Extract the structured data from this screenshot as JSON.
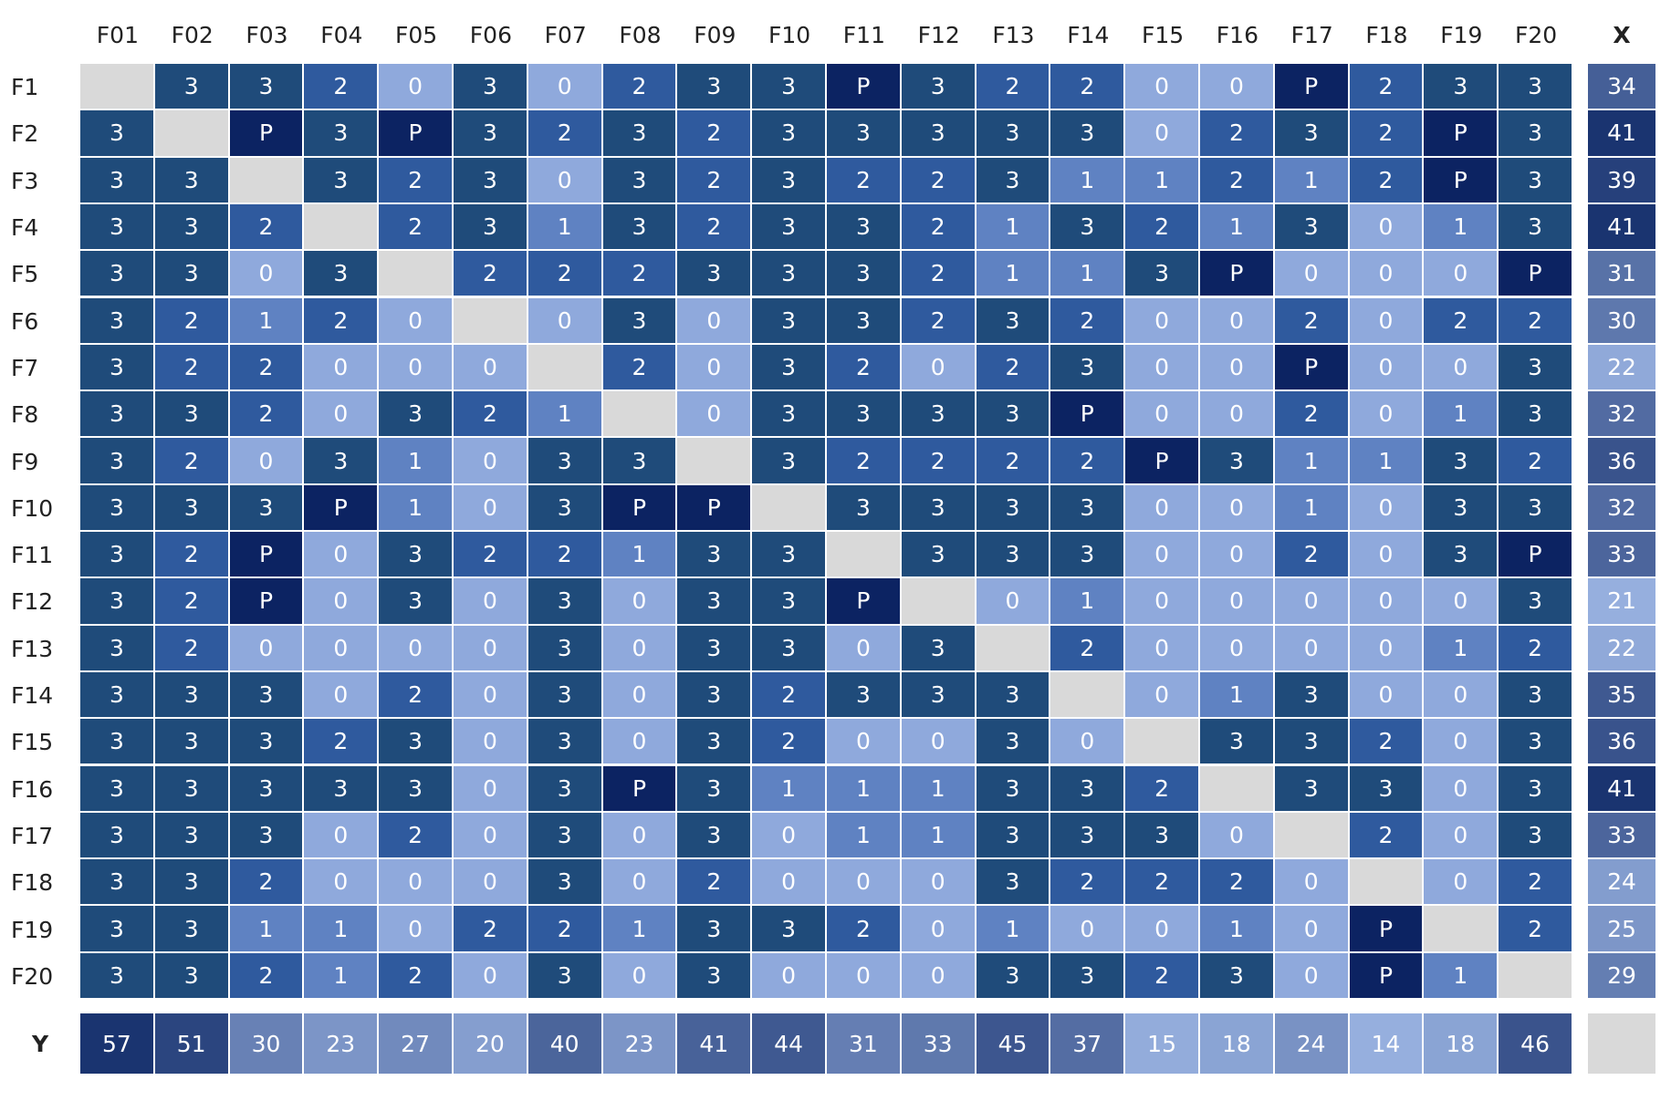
{
  "table": {
    "columns": [
      "F01",
      "F02",
      "F03",
      "F04",
      "F05",
      "F06",
      "F07",
      "F08",
      "F09",
      "F10",
      "F11",
      "F12",
      "F13",
      "F14",
      "F15",
      "F16",
      "F17",
      "F18",
      "F19",
      "F20",
      "X"
    ],
    "rows": [
      {
        "label": "F1",
        "cells": [
          null,
          3,
          3,
          2,
          0,
          3,
          0,
          2,
          3,
          3,
          "P",
          3,
          2,
          2,
          0,
          0,
          "P",
          2,
          3,
          3
        ],
        "total": 34
      },
      {
        "label": "F2",
        "cells": [
          3,
          null,
          "P",
          3,
          "P",
          3,
          2,
          3,
          2,
          3,
          3,
          3,
          3,
          3,
          0,
          2,
          3,
          2,
          "P",
          3
        ],
        "total": 41
      },
      {
        "label": "F3",
        "cells": [
          3,
          3,
          null,
          3,
          2,
          3,
          0,
          3,
          2,
          3,
          2,
          2,
          3,
          1,
          1,
          2,
          1,
          2,
          "P",
          3
        ],
        "total": 39
      },
      {
        "label": "F4",
        "cells": [
          3,
          3,
          2,
          null,
          2,
          3,
          1,
          3,
          2,
          3,
          3,
          2,
          1,
          3,
          2,
          1,
          3,
          0,
          1,
          3
        ],
        "total": 41
      },
      {
        "label": "F5",
        "cells": [
          3,
          3,
          0,
          3,
          null,
          2,
          2,
          2,
          3,
          3,
          3,
          2,
          1,
          1,
          3,
          "P",
          0,
          0,
          0,
          "P"
        ],
        "total": 31
      },
      {
        "label": "F6",
        "cells": [
          3,
          2,
          1,
          2,
          0,
          null,
          0,
          3,
          0,
          3,
          3,
          2,
          3,
          2,
          0,
          0,
          2,
          0,
          2,
          2
        ],
        "total": 30
      },
      {
        "label": "F7",
        "cells": [
          3,
          2,
          2,
          0,
          0,
          0,
          null,
          2,
          0,
          3,
          2,
          0,
          2,
          3,
          0,
          0,
          "P",
          0,
          0,
          3
        ],
        "total": 22
      },
      {
        "label": "F8",
        "cells": [
          3,
          3,
          2,
          0,
          3,
          2,
          1,
          null,
          0,
          3,
          3,
          3,
          3,
          "P",
          0,
          0,
          2,
          0,
          1,
          3
        ],
        "total": 32
      },
      {
        "label": "F9",
        "cells": [
          3,
          2,
          0,
          3,
          1,
          0,
          3,
          3,
          null,
          3,
          2,
          2,
          2,
          2,
          "P",
          3,
          1,
          1,
          3,
          2
        ],
        "total": 36
      },
      {
        "label": "F10",
        "cells": [
          3,
          3,
          3,
          "P",
          1,
          0,
          3,
          "P",
          "P",
          null,
          3,
          3,
          3,
          3,
          0,
          0,
          1,
          0,
          3,
          3
        ],
        "total": 32
      },
      {
        "label": "F11",
        "cells": [
          3,
          2,
          "P",
          0,
          3,
          2,
          2,
          1,
          3,
          3,
          null,
          3,
          3,
          3,
          0,
          0,
          2,
          0,
          3,
          "P"
        ],
        "total": 33
      },
      {
        "label": "F12",
        "cells": [
          3,
          2,
          "P",
          0,
          3,
          0,
          3,
          0,
          3,
          3,
          "P",
          null,
          0,
          1,
          0,
          0,
          0,
          0,
          0,
          3
        ],
        "total": 21
      },
      {
        "label": "F13",
        "cells": [
          3,
          2,
          0,
          0,
          0,
          0,
          3,
          0,
          3,
          3,
          0,
          3,
          null,
          2,
          0,
          0,
          0,
          0,
          1,
          2
        ],
        "total": 22
      },
      {
        "label": "F14",
        "cells": [
          3,
          3,
          3,
          0,
          2,
          0,
          3,
          0,
          3,
          2,
          3,
          3,
          3,
          null,
          0,
          1,
          3,
          0,
          0,
          3
        ],
        "total": 35
      },
      {
        "label": "F15",
        "cells": [
          3,
          3,
          3,
          2,
          3,
          0,
          3,
          0,
          3,
          2,
          0,
          0,
          3,
          0,
          null,
          3,
          3,
          2,
          0,
          3
        ],
        "total": 36
      },
      {
        "label": "F16",
        "cells": [
          3,
          3,
          3,
          3,
          3,
          0,
          3,
          "P",
          3,
          1,
          1,
          1,
          3,
          3,
          2,
          null,
          3,
          3,
          0,
          3
        ],
        "total": 41
      },
      {
        "label": "F17",
        "cells": [
          3,
          3,
          3,
          0,
          2,
          0,
          3,
          0,
          3,
          0,
          1,
          1,
          3,
          3,
          3,
          0,
          null,
          2,
          0,
          3
        ],
        "total": 33
      },
      {
        "label": "F18",
        "cells": [
          3,
          3,
          2,
          0,
          0,
          0,
          3,
          0,
          2,
          0,
          0,
          0,
          3,
          2,
          2,
          2,
          0,
          null,
          0,
          2
        ],
        "total": 24
      },
      {
        "label": "F19",
        "cells": [
          3,
          3,
          1,
          1,
          0,
          2,
          2,
          1,
          3,
          3,
          2,
          0,
          1,
          0,
          0,
          1,
          0,
          "P",
          null,
          2
        ],
        "total": 25
      },
      {
        "label": "F20",
        "cells": [
          3,
          3,
          2,
          1,
          2,
          0,
          3,
          0,
          3,
          0,
          0,
          0,
          3,
          3,
          2,
          3,
          0,
          "P",
          1,
          null
        ],
        "total": 29
      }
    ],
    "footer": {
      "label": "Y",
      "values": [
        57,
        51,
        30,
        23,
        27,
        20,
        40,
        23,
        41,
        44,
        31,
        33,
        45,
        37,
        15,
        18,
        24,
        14,
        18,
        46
      ]
    }
  }
}
